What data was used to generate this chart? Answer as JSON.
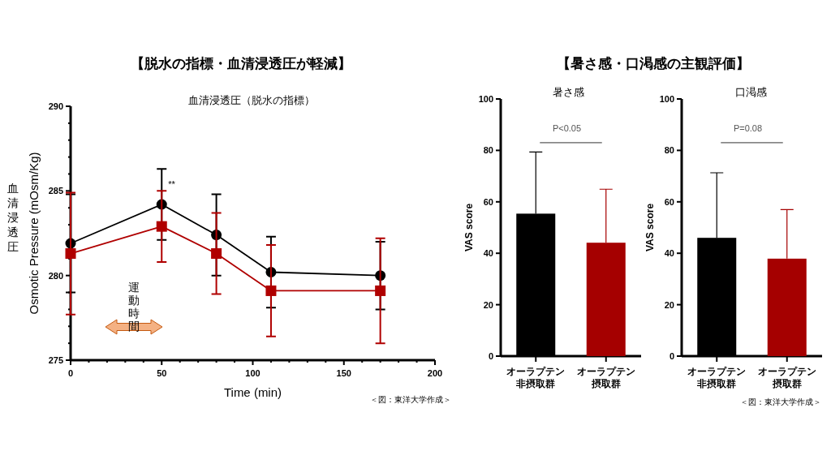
{
  "chart_data": [
    {
      "type": "line",
      "title": "【脱水の指標・血清浸透圧が軽減】",
      "subtitle": "血清浸透圧（脱水の指標）",
      "xlabel": "Time (min)",
      "ylabel": "Osmotic Pressure (mOsm/Kg)",
      "x": [
        0,
        50,
        80,
        110,
        170
      ],
      "series": [
        {
          "color": "#000000",
          "marker": "circle",
          "values": [
            281.9,
            284.2,
            282.4,
            280.2,
            280.0
          ],
          "errors": [
            [
              279.0,
              284.8
            ],
            [
              282.1,
              286.3
            ],
            [
              280.0,
              284.8
            ],
            [
              278.1,
              282.3
            ],
            [
              278.0,
              282.0
            ]
          ]
        },
        {
          "color": "#b00000",
          "marker": "square",
          "values": [
            281.3,
            282.9,
            281.3,
            279.1,
            279.1
          ],
          "errors": [
            [
              277.7,
              284.9
            ],
            [
              280.8,
              285.0
            ],
            [
              278.9,
              283.7
            ],
            [
              276.4,
              281.8
            ],
            [
              276.0,
              282.2
            ]
          ]
        }
      ],
      "xlim": [
        0,
        200
      ],
      "xticks": [
        0,
        50,
        100,
        150,
        200,
        {
          "value": 10,
          "label": null
        },
        {
          "value": 20,
          "label": null
        },
        {
          "value": 30,
          "label": null
        },
        {
          "value": 40,
          "label": null
        },
        {
          "value": 60,
          "label": null
        },
        {
          "value": 70,
          "label": null
        },
        {
          "value": 80,
          "label": null
        },
        {
          "value": 90,
          "label": null
        },
        {
          "value": 110,
          "label": null
        },
        {
          "value": 120,
          "label": null
        },
        {
          "value": 130,
          "label": null
        },
        {
          "value": 140,
          "label": null
        },
        {
          "value": 160,
          "label": null
        },
        {
          "value": 170,
          "label": null
        },
        {
          "value": 180,
          "label": null
        },
        {
          "value": 190,
          "label": null
        }
      ],
      "ylim": [
        275,
        290
      ],
      "yticks": [
        275,
        280,
        285,
        290,
        {
          "value": 276,
          "label": null
        },
        {
          "value": 277,
          "label": null
        },
        {
          "value": 278,
          "label": null
        },
        {
          "value": 279,
          "label": null
        },
        {
          "value": 281,
          "label": null
        },
        {
          "value": 282,
          "label": null
        },
        {
          "value": 283,
          "label": null
        },
        {
          "value": 284,
          "label": null
        },
        {
          "value": 286,
          "label": null
        },
        {
          "value": 287,
          "label": null
        },
        {
          "value": 288,
          "label": null
        },
        {
          "value": 289,
          "label": null
        }
      ],
      "annotations": [
        {
          "text": "**",
          "x": 50,
          "y": 285.4
        },
        "運動時間",
        "血清浸透圧",
        "＜図：東洋大学作成＞"
      ]
    },
    {
      "type": "bar",
      "title": "【暑さ感・口渇感の主観評価】",
      "subtitle": "暑さ感",
      "ylabel": "VAS score",
      "categories": [
        "オーラプテン非摂取群",
        "オーラプテン摂取群"
      ],
      "values": [
        55.4,
        44.1
      ],
      "colors": [
        "#000000",
        "#a50000"
      ],
      "errors": [
        [
          55.4,
          79.4
        ],
        [
          44.1,
          64.9
        ]
      ],
      "ylim": [
        0,
        100
      ],
      "yticks": [
        0,
        20,
        40,
        60,
        80,
        100
      ],
      "annotations": [
        "P<0.05"
      ]
    },
    {
      "type": "bar",
      "subtitle": "口渇感",
      "ylabel": "VAS score",
      "categories": [
        "オーラプテン非摂取群",
        "オーラプテン摂取群"
      ],
      "values": [
        46.0,
        37.9
      ],
      "colors": [
        "#000000",
        "#a50000"
      ],
      "errors": [
        [
          46.0,
          71.3
        ],
        [
          37.9,
          57.0
        ]
      ],
      "ylim": [
        0,
        100
      ],
      "yticks": [
        0,
        20,
        40,
        60,
        80,
        100
      ],
      "annotations": [
        "P=0.08",
        "＜図：東洋大学作成＞"
      ]
    }
  ]
}
